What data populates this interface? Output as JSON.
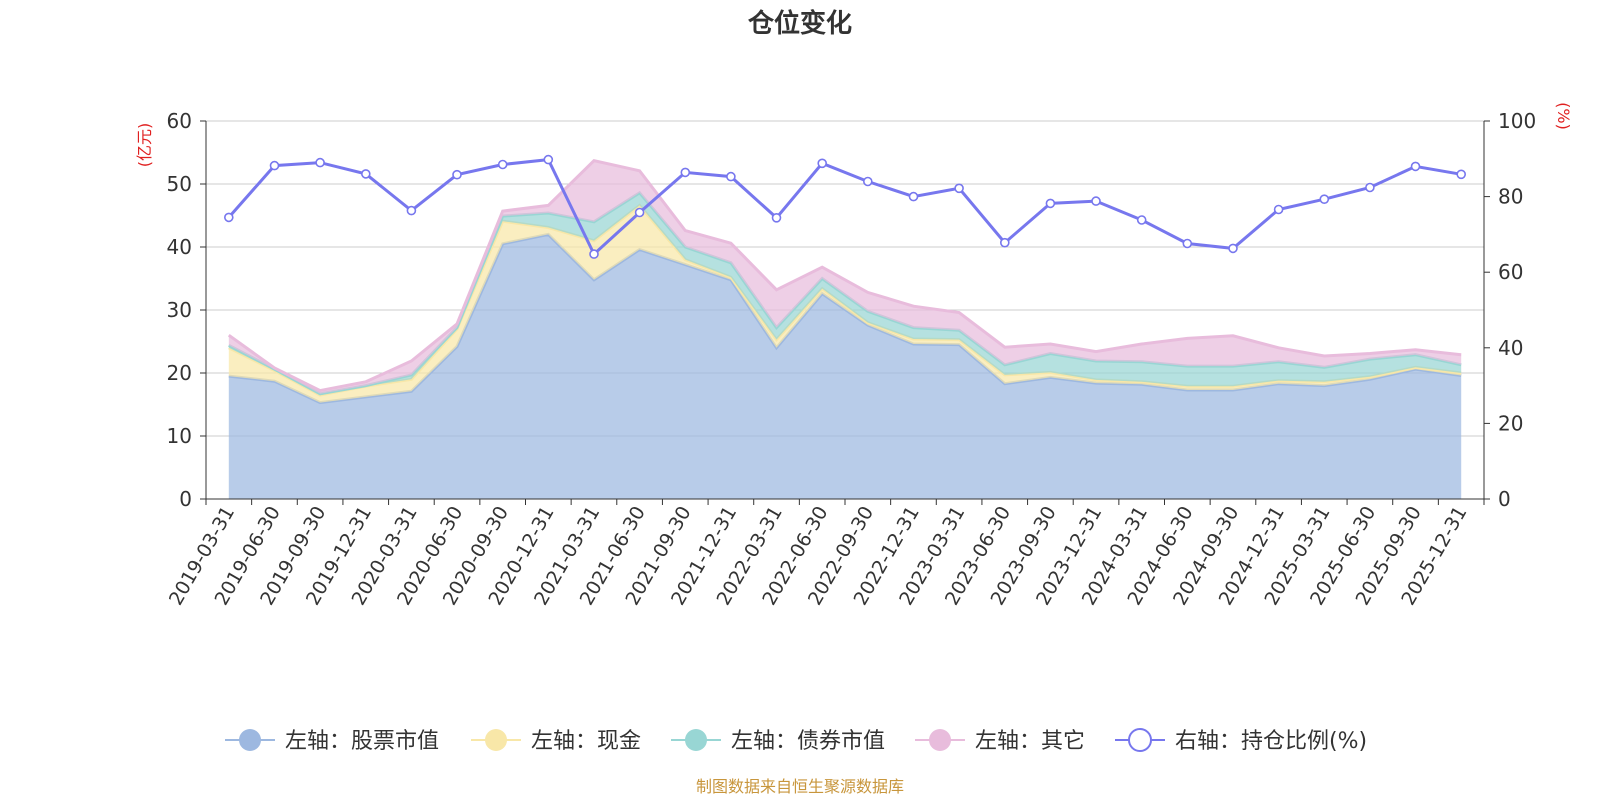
{
  "chart_data": {
    "type": "area",
    "title": "仓位变化",
    "left_axis_unit": "(亿元)",
    "right_axis_unit": "(%)",
    "left_ylim": [
      0,
      60
    ],
    "left_yticks": [
      "0",
      "10",
      "20",
      "30",
      "40",
      "50",
      "60"
    ],
    "right_ylim": [
      0,
      100
    ],
    "right_yticks": [
      "0",
      "20",
      "40",
      "60",
      "80",
      "100"
    ],
    "categories": [
      "2019-03-31",
      "2019-06-30",
      "2019-09-30",
      "2019-12-31",
      "2020-03-31",
      "2020-06-30",
      "2020-09-30",
      "2020-12-31",
      "2021-03-31",
      "2021-06-30",
      "2021-09-30",
      "2021-12-31",
      "2022-03-31",
      "2022-06-30",
      "2022-09-30",
      "2022-12-31",
      "2023-03-31",
      "2023-06-30",
      "2023-09-30",
      "2023-12-31",
      "2024-03-31",
      "2024-06-30",
      "2024-09-30",
      "2024-12-31",
      "2025-03-31",
      "2025-06-30",
      "2025-09-30",
      "2025-12-31"
    ],
    "stacked_series": [
      {
        "name": "左轴：股票市值",
        "color": "#9db8e0",
        "values": [
          19.5,
          18.7,
          15.3,
          16.2,
          17.1,
          24.2,
          40.5,
          42.0,
          34.8,
          39.6,
          37.2,
          34.8,
          24.0,
          32.6,
          27.6,
          24.6,
          24.5,
          18.3,
          19.3,
          18.4,
          18.2,
          17.3,
          17.3,
          18.3,
          18.0,
          19.0,
          20.6,
          19.6
        ]
      },
      {
        "name": "左轴：现金",
        "color": "#f8e7a8",
        "values": [
          4.5,
          1.7,
          1.2,
          1.7,
          1.9,
          2.8,
          3.6,
          1.1,
          6.2,
          7.0,
          0.8,
          0.4,
          1.3,
          0.8,
          0.4,
          0.8,
          0.8,
          1.4,
          0.8,
          0.5,
          0.4,
          0.6,
          0.6,
          0.5,
          0.6,
          0.4,
          0.3,
          0.4
        ]
      },
      {
        "name": "左轴：债券市值",
        "color": "#98d6d4",
        "values": [
          0.4,
          0.2,
          0.2,
          0.1,
          0.7,
          0.2,
          0.8,
          2.3,
          3.0,
          2.0,
          2.0,
          2.3,
          1.9,
          1.6,
          1.8,
          1.8,
          1.5,
          1.6,
          3.0,
          3.0,
          3.2,
          3.2,
          3.2,
          3.0,
          2.3,
          2.8,
          2.0,
          1.3
        ]
      },
      {
        "name": "左轴：其它",
        "color": "#e8bcdc",
        "values": [
          1.6,
          0.2,
          0.5,
          0.6,
          2.2,
          0.6,
          0.8,
          1.2,
          9.7,
          3.5,
          2.6,
          3.1,
          6.0,
          1.8,
          3.0,
          3.4,
          2.8,
          2.8,
          1.5,
          1.5,
          2.8,
          4.4,
          4.8,
          2.2,
          1.8,
          0.9,
          0.8,
          1.6
        ]
      }
    ],
    "line_series": {
      "name": "右轴：持仓比例(%)",
      "color": "#7777ee",
      "axis": "right",
      "values": [
        74.5,
        88.2,
        89.0,
        86.0,
        76.3,
        85.8,
        88.5,
        89.8,
        64.8,
        75.8,
        86.4,
        85.3,
        74.4,
        88.8,
        84.0,
        80.0,
        82.2,
        67.8,
        78.2,
        78.8,
        73.8,
        67.6,
        66.3,
        76.6,
        79.3,
        82.4,
        88.0,
        85.9
      ]
    }
  },
  "source_note": "制图数据来自恒生聚源数据库",
  "colors": {
    "axis_unit": "#e02020",
    "source_note": "#c8963c",
    "grid": "#cccccc",
    "axis": "#333333"
  }
}
